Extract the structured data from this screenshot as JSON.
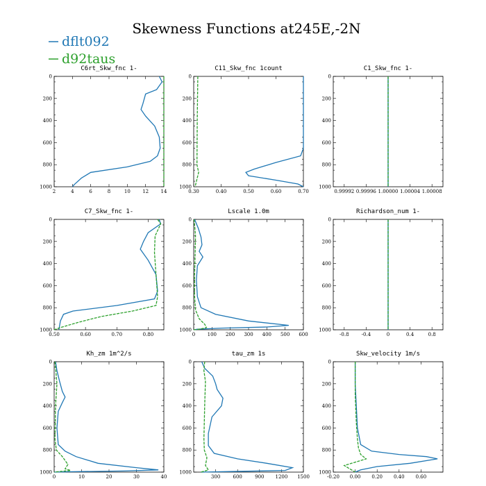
{
  "figure": {
    "title": "Skewness Functions at245E,-2N"
  },
  "legend": [
    {
      "label": "dflt092",
      "color": "#1f77b4"
    },
    {
      "label": "d92taus",
      "color": "#2ca02c"
    }
  ],
  "chart_data": [
    {
      "type": "line",
      "title": "C6rt_Skw_fnc   1-",
      "xlim": [
        2,
        14
      ],
      "ylim": [
        0,
        1000
      ],
      "y_inverted": true,
      "xticks": [
        "2",
        "4",
        "6",
        "8",
        "10",
        "12",
        "14"
      ],
      "yticks": [
        "0",
        "200",
        "400",
        "600",
        "800",
        "1000"
      ],
      "series": [
        {
          "name": "dflt092",
          "points": [
            [
              13.5,
              0
            ],
            [
              13.8,
              50
            ],
            [
              13.2,
              120
            ],
            [
              12,
              160
            ],
            [
              11.7,
              250
            ],
            [
              11.5,
              300
            ],
            [
              12,
              360
            ],
            [
              13,
              450
            ],
            [
              13.5,
              550
            ],
            [
              13.6,
              650
            ],
            [
              13.3,
              720
            ],
            [
              12.5,
              770
            ],
            [
              10,
              820
            ],
            [
              6,
              870
            ],
            [
              5,
              920
            ],
            [
              4.2,
              980
            ],
            [
              4,
              1000
            ]
          ]
        },
        {
          "name": "d92taus",
          "points": [
            [
              14,
              0
            ],
            [
              14,
              1000
            ]
          ]
        }
      ]
    },
    {
      "type": "line",
      "title": "C11_Skw_fnc   1count",
      "xlim": [
        0.3,
        0.7
      ],
      "ylim": [
        0,
        1000
      ],
      "y_inverted": true,
      "xticks": [
        "0.30",
        "0.40",
        "0.50",
        "0.60",
        "0.70"
      ],
      "yticks": [
        "0",
        "200",
        "400",
        "600",
        "800",
        "1000"
      ],
      "series": [
        {
          "name": "dflt092",
          "points": [
            [
              0.7,
              0
            ],
            [
              0.7,
              500
            ],
            [
              0.7,
              650
            ],
            [
              0.69,
              720
            ],
            [
              0.6,
              780
            ],
            [
              0.52,
              840
            ],
            [
              0.49,
              870
            ],
            [
              0.5,
              900
            ],
            [
              0.6,
              940
            ],
            [
              0.68,
              975
            ],
            [
              0.7,
              1000
            ]
          ]
        },
        {
          "name": "d92taus",
          "points": [
            [
              0.315,
              0
            ],
            [
              0.313,
              400
            ],
            [
              0.312,
              800
            ],
            [
              0.318,
              870
            ],
            [
              0.312,
              930
            ],
            [
              0.305,
              1000
            ]
          ]
        }
      ]
    },
    {
      "type": "line",
      "title": "C1_Skw_fnc   1-",
      "xlim": [
        0.9999,
        1.0001
      ],
      "ylim": [
        0,
        1000
      ],
      "y_inverted": true,
      "xticks": [
        "0.99992",
        "0.99996",
        "1.00000",
        "1.00004",
        "1.00008"
      ],
      "yticks": [
        "0",
        "200",
        "400",
        "600",
        "800",
        "1000"
      ],
      "series": [
        {
          "name": "dflt092",
          "points": [
            [
              1.0,
              0
            ],
            [
              1.0,
              1000
            ]
          ]
        },
        {
          "name": "d92taus",
          "points": [
            [
              1.0,
              0
            ],
            [
              1.0,
              1000
            ]
          ]
        }
      ]
    },
    {
      "type": "line",
      "title": "C7_Skw_fnc   1-",
      "xlim": [
        0.5,
        0.85
      ],
      "ylim": [
        0,
        1000
      ],
      "y_inverted": true,
      "xticks": [
        "0.50",
        "0.60",
        "0.70",
        "0.80"
      ],
      "yticks": [
        "0",
        "200",
        "400",
        "600",
        "800",
        "1000"
      ],
      "series": [
        {
          "name": "dflt092",
          "points": [
            [
              0.835,
              0
            ],
            [
              0.84,
              40
            ],
            [
              0.8,
              120
            ],
            [
              0.785,
              200
            ],
            [
              0.775,
              270
            ],
            [
              0.8,
              370
            ],
            [
              0.825,
              500
            ],
            [
              0.83,
              650
            ],
            [
              0.82,
              720
            ],
            [
              0.7,
              780
            ],
            [
              0.56,
              830
            ],
            [
              0.53,
              860
            ],
            [
              0.52,
              920
            ],
            [
              0.515,
              1000
            ]
          ]
        },
        {
          "name": "d92taus",
          "points": [
            [
              0.83,
              0
            ],
            [
              0.84,
              40
            ],
            [
              0.822,
              150
            ],
            [
              0.82,
              300
            ],
            [
              0.825,
              500
            ],
            [
              0.83,
              700
            ],
            [
              0.825,
              780
            ],
            [
              0.75,
              830
            ],
            [
              0.65,
              880
            ],
            [
              0.58,
              930
            ],
            [
              0.52,
              980
            ],
            [
              0.5,
              1000
            ]
          ]
        }
      ]
    },
    {
      "type": "line",
      "title": "Lscale   1.0m",
      "xlim": [
        0,
        600
      ],
      "ylim": [
        0,
        1000
      ],
      "y_inverted": true,
      "xticks": [
        "0",
        "100",
        "200",
        "300",
        "400",
        "500",
        "600"
      ],
      "yticks": [
        "0",
        "200",
        "400",
        "600",
        "800",
        "1000"
      ],
      "series": [
        {
          "name": "dflt092",
          "points": [
            [
              5,
              0
            ],
            [
              25,
              80
            ],
            [
              40,
              160
            ],
            [
              45,
              230
            ],
            [
              30,
              290
            ],
            [
              50,
              340
            ],
            [
              20,
              420
            ],
            [
              15,
              550
            ],
            [
              20,
              700
            ],
            [
              40,
              800
            ],
            [
              120,
              860
            ],
            [
              300,
              920
            ],
            [
              520,
              960
            ],
            [
              400,
              975
            ],
            [
              150,
              985
            ],
            [
              20,
              995
            ],
            [
              0,
              1000
            ]
          ]
        },
        {
          "name": "d92taus",
          "points": [
            [
              2,
              0
            ],
            [
              5,
              50
            ],
            [
              10,
              150
            ],
            [
              8,
              300
            ],
            [
              5,
              500
            ],
            [
              5,
              700
            ],
            [
              10,
              820
            ],
            [
              30,
              900
            ],
            [
              60,
              950
            ],
            [
              70,
              980
            ],
            [
              30,
              995
            ],
            [
              0,
              1000
            ]
          ]
        }
      ]
    },
    {
      "type": "line",
      "title": "Richardson_num   1-",
      "xlim": [
        -1,
        1
      ],
      "ylim": [
        0,
        1000
      ],
      "y_inverted": true,
      "xticks": [
        "-0.8",
        "-0.4",
        "0",
        "0.4",
        "0.8"
      ],
      "yticks": [
        "0",
        "200",
        "400",
        "600",
        "800",
        "1000"
      ],
      "series": [
        {
          "name": "dflt092",
          "points": [
            [
              0,
              0
            ],
            [
              0,
              1000
            ]
          ]
        },
        {
          "name": "d92taus",
          "points": [
            [
              0,
              0
            ],
            [
              0,
              1000
            ]
          ]
        }
      ]
    },
    {
      "type": "line",
      "title": "Kh_zm   1m^2/s",
      "xlim": [
        0,
        40
      ],
      "ylim": [
        0,
        1000
      ],
      "y_inverted": true,
      "xticks": [
        "0",
        "10",
        "20",
        "30",
        "40"
      ],
      "yticks": [
        "0",
        "200",
        "400",
        "600",
        "800",
        "1000"
      ],
      "series": [
        {
          "name": "dflt092",
          "points": [
            [
              0.5,
              0
            ],
            [
              1,
              80
            ],
            [
              2,
              180
            ],
            [
              3,
              270
            ],
            [
              4,
              320
            ],
            [
              3,
              370
            ],
            [
              1.5,
              450
            ],
            [
              1,
              600
            ],
            [
              1.5,
              750
            ],
            [
              4,
              810
            ],
            [
              8,
              860
            ],
            [
              16,
              920
            ],
            [
              30,
              960
            ],
            [
              38,
              980
            ],
            [
              25,
              990
            ],
            [
              5,
              997
            ],
            [
              0,
              1000
            ]
          ]
        },
        {
          "name": "d92taus",
          "points": [
            [
              0.3,
              0
            ],
            [
              0.6,
              80
            ],
            [
              1,
              200
            ],
            [
              0.5,
              400
            ],
            [
              0.3,
              700
            ],
            [
              0.8,
              800
            ],
            [
              3,
              860
            ],
            [
              5,
              930
            ],
            [
              4,
              970
            ],
            [
              6,
              985
            ],
            [
              1,
              997
            ],
            [
              0,
              1000
            ]
          ]
        }
      ]
    },
    {
      "type": "line",
      "title": "tau_zm   1s",
      "xlim": [
        0,
        1500
      ],
      "ylim": [
        0,
        1000
      ],
      "y_inverted": true,
      "xticks": [
        "300",
        "600",
        "900",
        "1200",
        "1500"
      ],
      "yticks": [
        "0",
        "200",
        "400",
        "600",
        "800",
        "1000"
      ],
      "series": [
        {
          "name": "dflt092",
          "points": [
            [
              110,
              0
            ],
            [
              150,
              60
            ],
            [
              260,
              130
            ],
            [
              300,
              200
            ],
            [
              320,
              250
            ],
            [
              400,
              330
            ],
            [
              380,
              400
            ],
            [
              250,
              500
            ],
            [
              200,
              650
            ],
            [
              200,
              760
            ],
            [
              280,
              830
            ],
            [
              600,
              880
            ],
            [
              1000,
              920
            ],
            [
              1350,
              960
            ],
            [
              1250,
              985
            ],
            [
              500,
              995
            ],
            [
              100,
              1000
            ]
          ]
        },
        {
          "name": "d92taus",
          "points": [
            [
              150,
              0
            ],
            [
              140,
              80
            ],
            [
              160,
              180
            ],
            [
              150,
              400
            ],
            [
              140,
              700
            ],
            [
              145,
              800
            ],
            [
              180,
              870
            ],
            [
              160,
              940
            ],
            [
              200,
              980
            ],
            [
              100,
              1000
            ]
          ]
        }
      ]
    },
    {
      "type": "line",
      "title": "Skw_velocity   1m/s",
      "xlim": [
        -0.2,
        0.8
      ],
      "ylim": [
        0,
        1000
      ],
      "y_inverted": true,
      "xticks": [
        "-0.20",
        "0.00",
        "0.20",
        "0.40",
        "0.60"
      ],
      "yticks": [
        "0",
        "200",
        "400",
        "600",
        "800",
        "1000"
      ],
      "series": [
        {
          "name": "dflt092",
          "points": [
            [
              0.0,
              0
            ],
            [
              0.0,
              200
            ],
            [
              0.01,
              400
            ],
            [
              0.02,
              600
            ],
            [
              0.05,
              750
            ],
            [
              0.15,
              810
            ],
            [
              0.4,
              840
            ],
            [
              0.65,
              860
            ],
            [
              0.75,
              880
            ],
            [
              0.5,
              920
            ],
            [
              0.2,
              950
            ],
            [
              0.05,
              980
            ],
            [
              0.0,
              1000
            ]
          ]
        },
        {
          "name": "d92taus",
          "points": [
            [
              0.0,
              0
            ],
            [
              0.0,
              300
            ],
            [
              0.01,
              550
            ],
            [
              0.02,
              700
            ],
            [
              0.03,
              780
            ],
            [
              0.05,
              840
            ],
            [
              0.1,
              880
            ],
            [
              0.0,
              910
            ],
            [
              -0.1,
              940
            ],
            [
              -0.05,
              970
            ],
            [
              0.0,
              1000
            ]
          ]
        }
      ]
    }
  ]
}
